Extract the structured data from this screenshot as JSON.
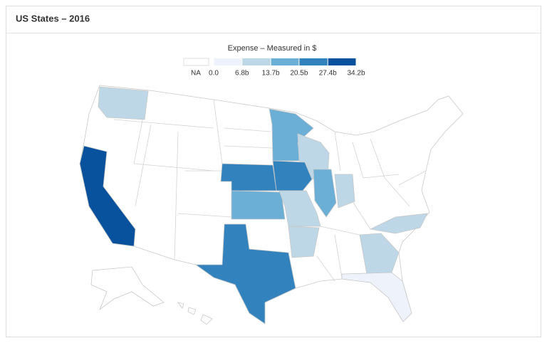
{
  "chart_data": {
    "type": "choropleth",
    "title": "US States – 2016",
    "legend": {
      "title": "Expense – Measured in $",
      "na_label": "NA",
      "na_color": "#ffffff",
      "ticks": [
        {
          "value": 0,
          "label": "0.0"
        },
        {
          "value": 6.8,
          "label": "6.8b"
        },
        {
          "value": 13.7,
          "label": "13.7b"
        },
        {
          "value": 20.5,
          "label": "20.5b"
        },
        {
          "value": 27.4,
          "label": "27.4b"
        },
        {
          "value": 34.2,
          "label": "34.2b"
        }
      ],
      "colors": [
        "#eef3fb",
        "#bdd7e7",
        "#6baed6",
        "#3182bd",
        "#08519c"
      ]
    },
    "values": [
      9,
      32,
      17,
      9,
      23,
      22,
      16,
      8,
      8,
      15,
      8,
      24,
      9,
      9,
      3
    ]
  }
}
